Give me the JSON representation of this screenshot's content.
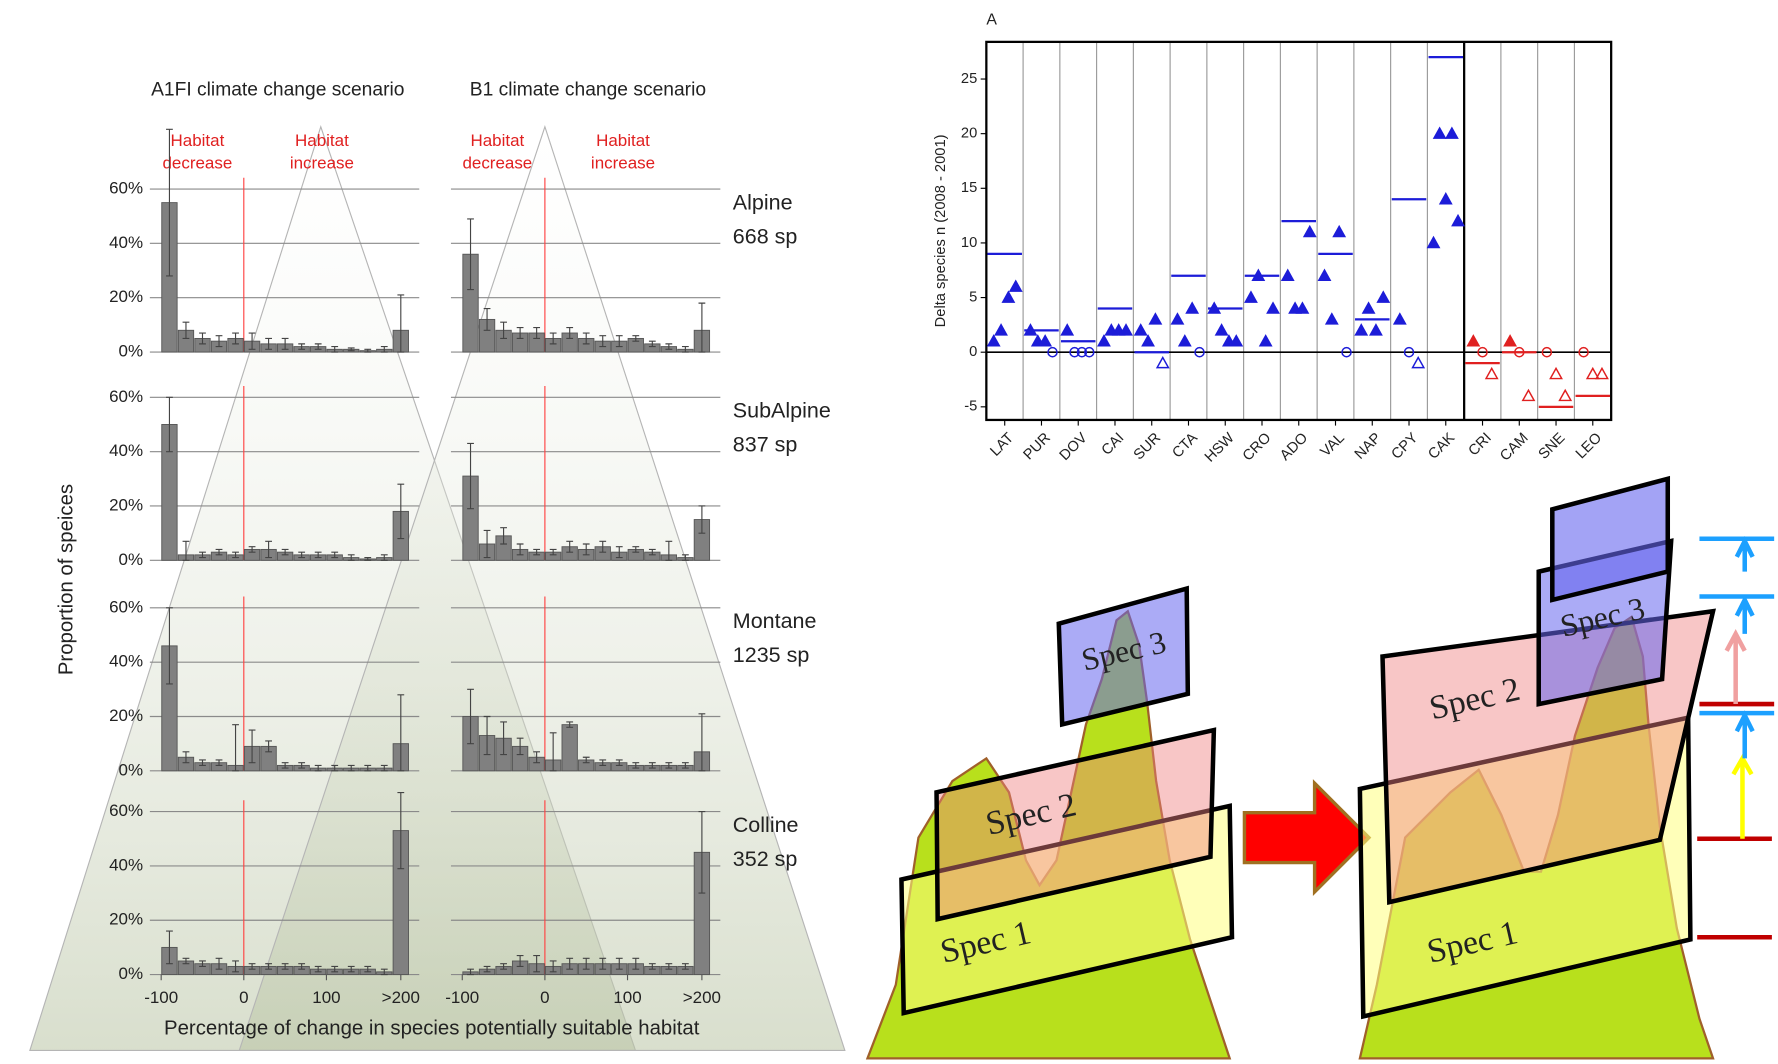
{
  "chart_data": [
    {
      "type": "bar",
      "scenarios": [
        "A1FI climate change scenario",
        "B1 climate change scenario"
      ],
      "habitat_decrease": [
        "Habitat",
        "decrease"
      ],
      "habitat_increase": [
        "Habitat",
        "increase"
      ],
      "y_label": "Proportion of speices",
      "x_label": "Percentage of change in species potentially suitable habitat",
      "color": "#808080",
      "grid": true,
      "bins": [
        -100,
        -80,
        -60,
        -40,
        -20,
        0,
        20,
        40,
        60,
        80,
        100,
        120,
        140,
        160,
        180,
        200
      ],
      "xlim": [
        -100,
        200
      ],
      "xticks": [
        -100,
        0,
        100,
        {
          "value": 190,
          "label": ">200"
        }
      ],
      "ylim": [
        0,
        60
      ],
      "yticks": [
        {
          "value": 0,
          "label": "0%"
        },
        {
          "value": 20,
          "label": "20%"
        },
        {
          "value": 40,
          "label": "40%"
        },
        {
          "value": 60,
          "label": "60%"
        }
      ],
      "rows": [
        {
          "zone": "Alpine",
          "species": "668 sp",
          "panels": [
            {
              "values": [
                55,
                8,
                5,
                4,
                5,
                4,
                3,
                3,
                2,
                2,
                1,
                1,
                0.5,
                1,
                8
              ],
              "errors": [
                27,
                3,
                2,
                2,
                2,
                3,
                2,
                2,
                1,
                1,
                1,
                0.5,
                0.5,
                1,
                13
              ]
            },
            {
              "values": [
                36,
                12,
                8,
                7,
                7,
                5,
                7,
                5,
                4,
                4,
                5,
                3,
                2,
                1,
                8
              ],
              "errors": [
                13,
                4,
                3,
                2,
                2,
                2,
                2,
                2,
                2,
                2,
                1,
                1,
                1,
                1,
                10
              ]
            }
          ]
        },
        {
          "zone": "SubAlpine",
          "species": "837 sp",
          "panels": [
            {
              "values": [
                50,
                2,
                2,
                3,
                2,
                4,
                4,
                3,
                2,
                2,
                2,
                1,
                0.5,
                1,
                18
              ],
              "errors": [
                10,
                5,
                1,
                1,
                1,
                1,
                3,
                1,
                1,
                1,
                1,
                1,
                0.5,
                1,
                10
              ]
            },
            {
              "values": [
                31,
                6,
                9,
                4,
                3,
                3,
                5,
                4,
                5,
                3,
                4,
                3,
                2,
                1,
                15
              ],
              "errors": [
                12,
                5,
                3,
                2,
                1,
                1,
                2,
                2,
                2,
                2,
                1,
                1,
                5,
                1,
                5
              ]
            }
          ]
        },
        {
          "zone": "Montane",
          "species": "1235 sp",
          "panels": [
            {
              "values": [
                46,
                5,
                3,
                3,
                2,
                9,
                9,
                2,
                2,
                1,
                1,
                1,
                1,
                1,
                10
              ],
              "errors": [
                14,
                2,
                1,
                1,
                15,
                6,
                2,
                1,
                1,
                1,
                1,
                1,
                1,
                1,
                18
              ]
            },
            {
              "values": [
                20,
                13,
                12,
                9,
                5,
                4,
                17,
                4,
                3,
                3,
                2,
                2,
                2,
                2,
                7
              ],
              "errors": [
                10,
                7,
                6,
                3,
                2,
                10,
                1,
                1,
                1,
                1,
                1,
                1,
                1,
                1,
                14
              ]
            }
          ]
        },
        {
          "zone": "Colline",
          "species": "352 sp",
          "panels": [
            {
              "values": [
                10,
                5,
                4,
                4,
                3,
                3,
                3,
                3,
                3,
                2,
                2,
                2,
                2,
                1,
                53
              ],
              "errors": [
                6,
                1,
                1,
                2,
                2,
                1,
                1,
                1,
                1,
                1,
                1,
                1,
                1,
                1,
                14
              ]
            },
            {
              "values": [
                1,
                2,
                3,
                5,
                4,
                3,
                4,
                4,
                4,
                4,
                4,
                3,
                3,
                3,
                45
              ],
              "errors": [
                1,
                1,
                1,
                2,
                3,
                2,
                2,
                2,
                2,
                2,
                2,
                1,
                1,
                1,
                15
              ]
            }
          ]
        }
      ]
    },
    {
      "type": "scatter",
      "title": "A",
      "y_label": "Delta species n (2008 - 2001)",
      "categories": [
        "LAT",
        "PUR",
        "DOV",
        "CAI",
        "SUR",
        "CTA",
        "HSW",
        "CRO",
        "ADO",
        "VAL",
        "NAP",
        "CPY",
        "CAK",
        "CRI",
        "CAM",
        "SNE",
        "LEO"
      ],
      "colors": [
        "#1c1cd8",
        "#1c1cd8",
        "#1c1cd8",
        "#1c1cd8",
        "#1c1cd8",
        "#1c1cd8",
        "#1c1cd8",
        "#1c1cd8",
        "#1c1cd8",
        "#1c1cd8",
        "#1c1cd8",
        "#1c1cd8",
        "#1c1cd8",
        "#e02020",
        "#e02020",
        "#e02020",
        "#e02020"
      ],
      "means": [
        9,
        2,
        1,
        4,
        0,
        7,
        4,
        7,
        12,
        9,
        3,
        14,
        27,
        -1,
        0,
        -5,
        -4
      ],
      "filled": [
        [
          1,
          2,
          5,
          6
        ],
        [
          2,
          1,
          1
        ],
        [
          2
        ],
        [
          1,
          2,
          2,
          2
        ],
        [
          2,
          1,
          3
        ],
        [
          3,
          1,
          4
        ],
        [
          4,
          2,
          1,
          1
        ],
        [
          5,
          7,
          1,
          4
        ],
        [
          7,
          4,
          4,
          11
        ],
        [
          7,
          3,
          11
        ],
        [
          2,
          4,
          2,
          5
        ],
        [
          3
        ],
        [
          10,
          20,
          14,
          20,
          12
        ],
        [
          1
        ],
        [
          1
        ],
        [],
        []
      ],
      "open_circle": [
        [],
        [
          0
        ],
        [
          0,
          0,
          0
        ],
        [],
        [],
        [
          0
        ],
        [],
        [],
        [],
        [
          0
        ],
        [],
        [
          0
        ],
        [],
        [
          0
        ],
        [
          0
        ],
        [
          0
        ],
        [
          0
        ]
      ],
      "open_triangle": [
        [],
        [],
        [],
        [],
        [
          -1
        ],
        [],
        [],
        [],
        [],
        [],
        [],
        [
          -1
        ],
        [],
        [
          -2
        ],
        [
          -4
        ],
        [
          -2,
          -4
        ],
        [
          -2,
          -2
        ]
      ],
      "ylim": [
        -6.2,
        28.4
      ],
      "yticks": [
        -5,
        0,
        5,
        10,
        15,
        20,
        25
      ]
    }
  ],
  "diagram": {
    "before": [
      "Spec 1",
      "Spec 2",
      "Spec 3"
    ],
    "after": [
      "Spec 1",
      "Spec 2",
      "Spec 3"
    ]
  }
}
